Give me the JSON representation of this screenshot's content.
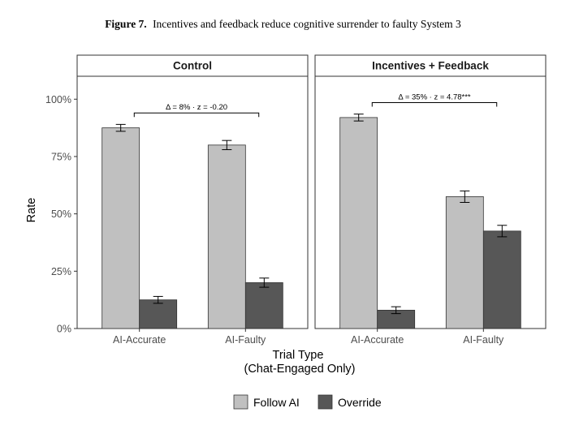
{
  "figure": {
    "label": "Figure 7.",
    "caption": "Incentives and feedback reduce cognitive surrender to faulty System 3"
  },
  "chart_data": {
    "type": "bar",
    "ylabel": "Rate",
    "xlabel_line1": "Trial Type",
    "xlabel_line2": "(Chat-Engaged Only)",
    "ylim": [
      0,
      1.1
    ],
    "y_ticks": [
      {
        "value": 0,
        "label": "0%"
      },
      {
        "value": 0.25,
        "label": "25%"
      },
      {
        "value": 0.5,
        "label": "50%"
      },
      {
        "value": 0.75,
        "label": "75%"
      },
      {
        "value": 1.0,
        "label": "100%"
      }
    ],
    "categories": [
      "AI-Accurate",
      "AI-Faulty"
    ],
    "series_colors": {
      "Follow AI": "#c0c0c0",
      "Override": "#575757"
    },
    "legend": {
      "position": "bottom",
      "entries": [
        {
          "name": "Follow AI",
          "color": "#c0c0c0"
        },
        {
          "name": "Override",
          "color": "#575757"
        }
      ]
    },
    "grid": false,
    "panels": [
      {
        "title": "Control",
        "series": [
          {
            "name": "Follow AI",
            "values": [
              0.875,
              0.8
            ],
            "error_low": [
              0.86,
              0.78
            ],
            "error_high": [
              0.89,
              0.82
            ]
          },
          {
            "name": "Override",
            "values": [
              0.125,
              0.2
            ],
            "error_low": [
              0.11,
              0.18
            ],
            "error_high": [
              0.14,
              0.22
            ]
          }
        ],
        "annotation": {
          "text": "Δ = 8% · z = -0.20",
          "from_category": 0,
          "to_category": 1,
          "y": 0.94
        }
      },
      {
        "title": "Incentives + Feedback",
        "series": [
          {
            "name": "Follow AI",
            "values": [
              0.92,
              0.575
            ],
            "error_low": [
              0.905,
              0.55
            ],
            "error_high": [
              0.935,
              0.6
            ]
          },
          {
            "name": "Override",
            "values": [
              0.08,
              0.425
            ],
            "error_low": [
              0.065,
              0.4
            ],
            "error_high": [
              0.095,
              0.45
            ]
          }
        ],
        "annotation": {
          "text": "Δ = 35% · z = 4.78***",
          "from_category": 0,
          "to_category": 1,
          "y": 0.985
        }
      }
    ]
  }
}
